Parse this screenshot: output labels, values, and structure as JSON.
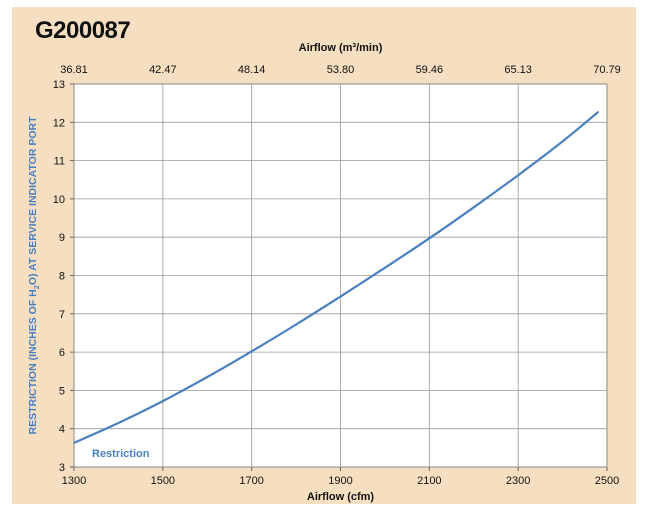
{
  "chart_data": {
    "type": "line",
    "title": "G200087",
    "xlabel": "Airflow (cfm)",
    "x2label": "Airflow (m³/min)",
    "ylabel_parts": [
      "RESTRICTION (INCHES OF H",
      "2",
      "O) AT SERVICE INDICATOR PORT"
    ],
    "xlim": [
      1300,
      2500
    ],
    "ylim": [
      3,
      13
    ],
    "x_ticks": [
      1300,
      1500,
      1700,
      1900,
      2100,
      2300,
      2500
    ],
    "x2_ticks": [
      "36.81",
      "42.47",
      "48.14",
      "53.80",
      "59.46",
      "65.13",
      "70.79"
    ],
    "y_ticks": [
      3,
      4,
      5,
      6,
      7,
      8,
      9,
      10,
      11,
      12,
      13
    ],
    "grid": true,
    "series": [
      {
        "name": "Restriction",
        "color": "#4a7fc0",
        "x": [
          1300,
          1400,
          1500,
          1600,
          1700,
          1800,
          1900,
          2000,
          2100,
          2200,
          2300,
          2400,
          2480
        ],
        "y": [
          3.63,
          4.15,
          4.72,
          5.35,
          6.02,
          6.72,
          7.45,
          8.2,
          8.97,
          9.78,
          10.62,
          11.5,
          12.27
        ]
      }
    ]
  }
}
